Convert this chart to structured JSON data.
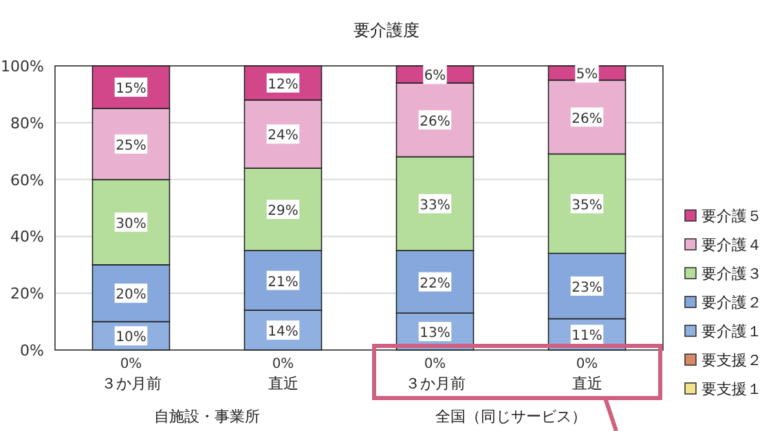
{
  "chart_data": {
    "type": "bar",
    "stacked": true,
    "title": "要介護度",
    "categories": [
      "３か月前",
      "直近",
      "３か月前",
      "直近"
    ],
    "series": [
      {
        "name": "要支援１",
        "color": "#f2e48a",
        "values": [
          0,
          0,
          0,
          0
        ],
        "value_labels": [
          null,
          null,
          null,
          null
        ]
      },
      {
        "name": "要支援２",
        "color": "#d9886a",
        "values": [
          0,
          0,
          0,
          0
        ],
        "value_labels": [
          "0%",
          "0%",
          "0%",
          "0%"
        ]
      },
      {
        "name": "要介護１",
        "color": "#8fb0e0",
        "values": [
          10,
          14,
          13,
          11
        ],
        "value_labels": [
          "10%",
          "14%",
          "13%",
          "11%"
        ]
      },
      {
        "name": "要介護２",
        "color": "#86a8dc",
        "values": [
          20,
          21,
          22,
          23
        ],
        "value_labels": [
          "20%",
          "21%",
          "22%",
          "23%"
        ]
      },
      {
        "name": "要介護３",
        "color": "#b5dd9c",
        "values": [
          30,
          29,
          33,
          35
        ],
        "value_labels": [
          "30%",
          "29%",
          "33%",
          "35%"
        ]
      },
      {
        "name": "要介護４",
        "color": "#eab0d0",
        "values": [
          25,
          24,
          26,
          26
        ],
        "value_labels": [
          "25%",
          "24%",
          "26%",
          "26%"
        ]
      },
      {
        "name": "要介護５",
        "color": "#d2478a",
        "values": [
          15,
          12,
          6,
          5
        ],
        "value_labels": [
          "15%",
          "12%",
          "6%",
          "5%"
        ]
      }
    ],
    "ylim": [
      0,
      100
    ],
    "yticks": [
      {
        "value": 0,
        "label": "0%"
      },
      {
        "value": 20,
        "label": "20%"
      },
      {
        "value": 40,
        "label": "40%"
      },
      {
        "value": 60,
        "label": "60%"
      },
      {
        "value": 80,
        "label": "80%"
      },
      {
        "value": 100,
        "label": "100%"
      }
    ],
    "grid": "y",
    "legend": "right",
    "annotations": [
      "自施設・事業所",
      "全国（同じサービス）"
    ]
  }
}
